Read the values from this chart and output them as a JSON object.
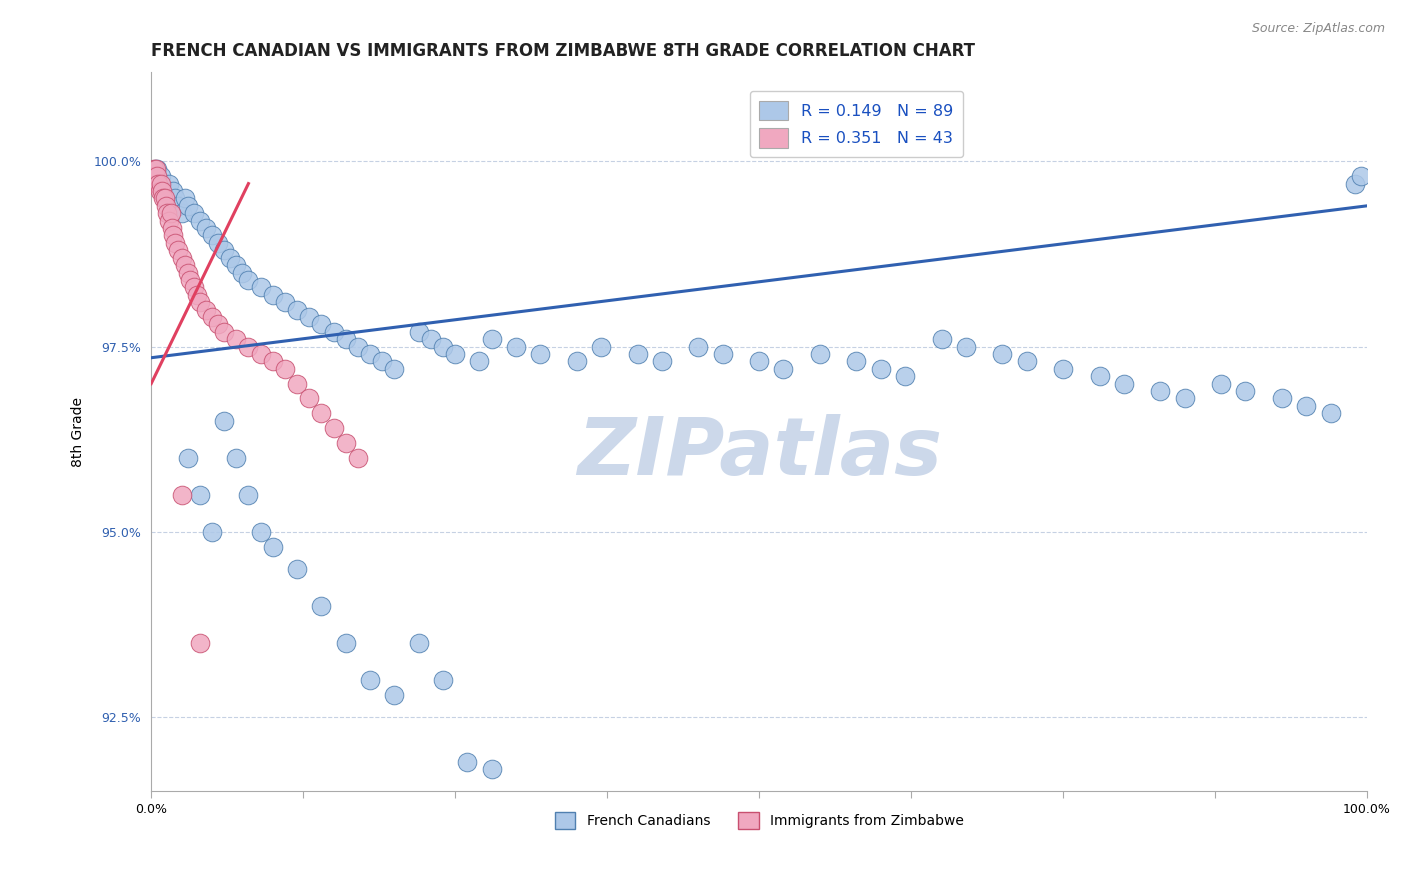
{
  "title": "FRENCH CANADIAN VS IMMIGRANTS FROM ZIMBABWE 8TH GRADE CORRELATION CHART",
  "source": "Source: ZipAtlas.com",
  "ylabel": "8th Grade",
  "xlim": [
    0.0,
    100.0
  ],
  "ylim": [
    91.5,
    101.2
  ],
  "yticks": [
    92.5,
    95.0,
    97.5,
    100.0
  ],
  "xticks": [
    0.0,
    12.5,
    25.0,
    37.5,
    50.0,
    62.5,
    75.0,
    87.5,
    100.0
  ],
  "xtick_labels": [
    "0.0%",
    "",
    "",
    "",
    "",
    "",
    "",
    "",
    "100.0%"
  ],
  "ytick_labels": [
    "92.5%",
    "95.0%",
    "97.5%",
    "100.0%"
  ],
  "blue_R": 0.149,
  "blue_N": 89,
  "pink_R": 0.351,
  "pink_N": 43,
  "blue_color": "#adc8e8",
  "pink_color": "#f0a8c0",
  "blue_edge": "#5080b0",
  "pink_edge": "#c85070",
  "blue_line_color": "#3060b0",
  "pink_line_color": "#e04060",
  "watermark_color": "#ccd8ea",
  "legend_blue_label": "French Canadians",
  "legend_pink_label": "Immigrants from Zimbabwe",
  "blue_line_x0": 0.0,
  "blue_line_y0": 97.35,
  "blue_line_x1": 100.0,
  "blue_line_y1": 99.4,
  "pink_line_x0": 0.0,
  "pink_line_y0": 97.0,
  "pink_line_x1": 8.0,
  "pink_line_y1": 99.7,
  "blue_scatter_x": [
    0.3,
    0.5,
    0.5,
    0.7,
    0.8,
    1.0,
    1.2,
    1.5,
    1.8,
    2.0,
    2.2,
    2.5,
    2.8,
    3.0,
    3.5,
    4.0,
    4.5,
    5.0,
    5.5,
    6.0,
    6.5,
    7.0,
    7.5,
    8.0,
    9.0,
    10.0,
    11.0,
    12.0,
    13.0,
    14.0,
    15.0,
    16.0,
    17.0,
    18.0,
    19.0,
    20.0,
    22.0,
    23.0,
    24.0,
    25.0,
    27.0,
    28.0,
    30.0,
    32.0,
    35.0,
    37.0,
    40.0,
    42.0,
    45.0,
    47.0,
    50.0,
    52.0,
    55.0,
    58.0,
    60.0,
    62.0,
    65.0,
    67.0,
    70.0,
    72.0,
    75.0,
    78.0,
    80.0,
    83.0,
    85.0,
    88.0,
    90.0,
    93.0,
    95.0,
    97.0,
    99.0,
    99.5,
    3.0,
    4.0,
    5.0,
    6.0,
    7.0,
    8.0,
    9.0,
    10.0,
    12.0,
    14.0,
    16.0,
    18.0,
    20.0,
    22.0,
    24.0,
    26.0,
    28.0
  ],
  "blue_scatter_y": [
    99.9,
    99.8,
    99.9,
    99.7,
    99.8,
    99.6,
    99.5,
    99.7,
    99.6,
    99.5,
    99.4,
    99.3,
    99.5,
    99.4,
    99.3,
    99.2,
    99.1,
    99.0,
    98.9,
    98.8,
    98.7,
    98.6,
    98.5,
    98.4,
    98.3,
    98.2,
    98.1,
    98.0,
    97.9,
    97.8,
    97.7,
    97.6,
    97.5,
    97.4,
    97.3,
    97.2,
    97.7,
    97.6,
    97.5,
    97.4,
    97.3,
    97.6,
    97.5,
    97.4,
    97.3,
    97.5,
    97.4,
    97.3,
    97.5,
    97.4,
    97.3,
    97.2,
    97.4,
    97.3,
    97.2,
    97.1,
    97.6,
    97.5,
    97.4,
    97.3,
    97.2,
    97.1,
    97.0,
    96.9,
    96.8,
    97.0,
    96.9,
    96.8,
    96.7,
    96.6,
    99.7,
    99.8,
    96.0,
    95.5,
    95.0,
    96.5,
    96.0,
    95.5,
    95.0,
    94.8,
    94.5,
    94.0,
    93.5,
    93.0,
    92.8,
    93.5,
    93.0,
    91.9,
    91.8
  ],
  "pink_scatter_x": [
    0.2,
    0.3,
    0.4,
    0.5,
    0.5,
    0.6,
    0.7,
    0.8,
    0.9,
    1.0,
    1.1,
    1.2,
    1.3,
    1.5,
    1.6,
    1.7,
    1.8,
    2.0,
    2.2,
    2.5,
    2.8,
    3.0,
    3.2,
    3.5,
    3.8,
    4.0,
    4.5,
    5.0,
    5.5,
    6.0,
    7.0,
    8.0,
    9.0,
    10.0,
    11.0,
    12.0,
    13.0,
    14.0,
    15.0,
    16.0,
    17.0,
    2.5,
    4.0
  ],
  "pink_scatter_y": [
    99.9,
    99.8,
    99.9,
    99.7,
    99.8,
    99.7,
    99.6,
    99.7,
    99.6,
    99.5,
    99.5,
    99.4,
    99.3,
    99.2,
    99.3,
    99.1,
    99.0,
    98.9,
    98.8,
    98.7,
    98.6,
    98.5,
    98.4,
    98.3,
    98.2,
    98.1,
    98.0,
    97.9,
    97.8,
    97.7,
    97.6,
    97.5,
    97.4,
    97.3,
    97.2,
    97.0,
    96.8,
    96.6,
    96.4,
    96.2,
    96.0,
    95.5,
    93.5
  ],
  "title_fontsize": 12,
  "axis_fontsize": 10,
  "tick_fontsize": 9
}
